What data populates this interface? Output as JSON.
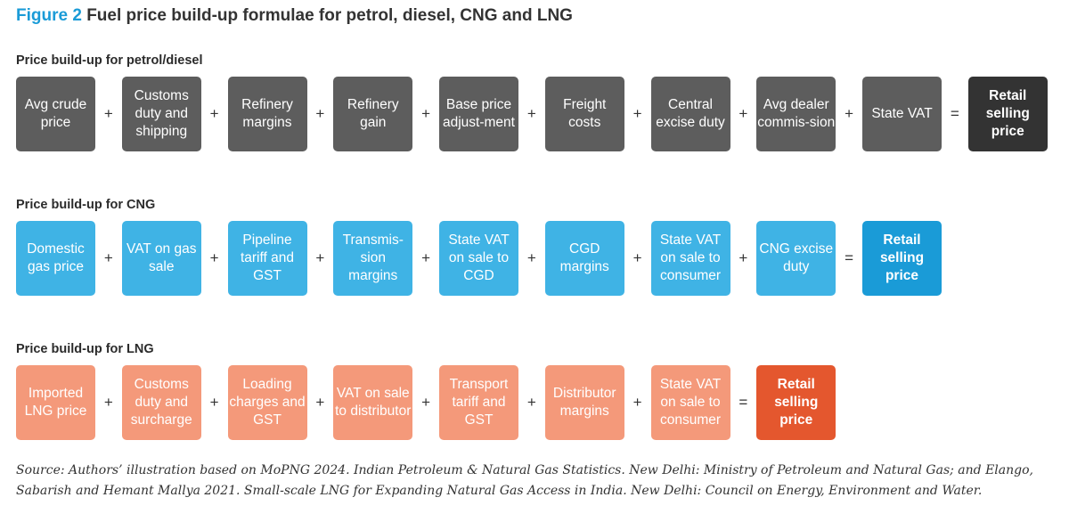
{
  "figure": {
    "label": "Figure 2",
    "title": "Fuel price build-up formulae for petrol, diesel, CNG and LNG"
  },
  "colors": {
    "accent": "#1a9bd7",
    "petrol_box": "#5d5d5d",
    "petrol_final": "#333333",
    "cng_box": "#3fb3e5",
    "cng_final": "#1a9bd7",
    "lng_box": "#f4997a",
    "lng_final": "#e4572e"
  },
  "sections": [
    {
      "title": "Price build-up for petrol/diesel",
      "items": [
        "Avg crude price",
        "Customs duty and shipping",
        "Refinery margins",
        "Refinery gain",
        "Base price adjust-ment",
        "Freight costs",
        "Central excise duty",
        "Avg dealer commis-sion",
        "State VAT"
      ],
      "result": "Retail selling price"
    },
    {
      "title": "Price build-up for CNG",
      "items": [
        "Domestic gas price",
        "VAT on gas sale",
        "Pipeline tariff and GST",
        "Transmis-sion margins",
        "State VAT on sale to CGD",
        "CGD margins",
        "State VAT on sale to consumer",
        "CNG excise duty"
      ],
      "result": "Retail selling price"
    },
    {
      "title": "Price build-up for LNG",
      "items": [
        "Imported LNG price",
        "Customs duty and surcharge",
        "Loading charges and GST",
        "VAT on sale to distributor",
        "Transport tariff and GST",
        "Distributor margins",
        "State VAT on sale to consumer"
      ],
      "result": "Retail selling price"
    }
  ],
  "operators": {
    "plus": "+",
    "equals": "="
  },
  "source": "Source: Authors’ illustration based on MoPNG 2024. Indian Petroleum & Natural Gas Statistics. New Delhi: Ministry of Petroleum and Natural Gas; and Elango, Sabarish and Hemant Mallya 2021. Small-scale LNG for Expanding Natural Gas Access in India. New Delhi: Council on Energy, Environment and Water."
}
